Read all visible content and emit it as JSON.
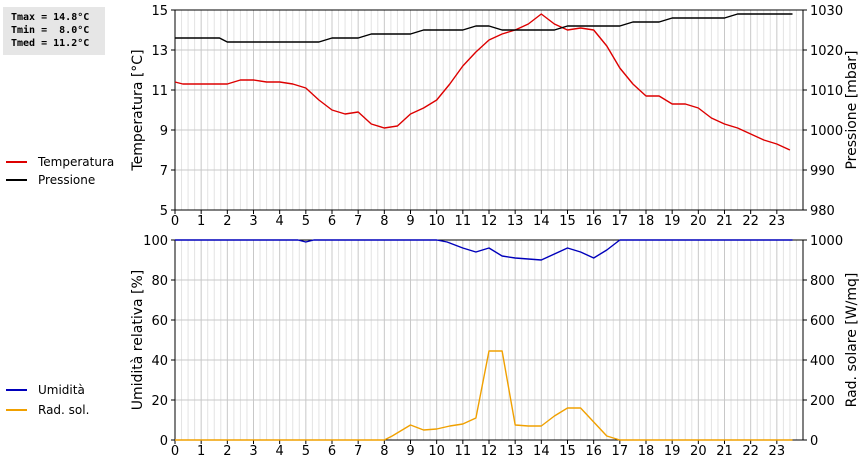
{
  "stats": {
    "tmax": "Tmax = 14.8°C",
    "tmin": "Tmin =  8.0°C",
    "tmed": "Tmed = 11.2°C"
  },
  "chart_data": [
    {
      "type": "line",
      "x_ticks": [
        "0",
        "1",
        "2",
        "3",
        "4",
        "5",
        "6",
        "7",
        "8",
        "9",
        "10",
        "11",
        "12",
        "13",
        "14",
        "15",
        "16",
        "17",
        "18",
        "19",
        "20",
        "21",
        "22",
        "23"
      ],
      "xlim": [
        0,
        24
      ],
      "ylabel_left": "Temperatura [°C]",
      "ylim_left": [
        5,
        15
      ],
      "yticks_left": [
        5,
        7,
        9,
        11,
        13,
        15
      ],
      "ylabel_right": "Pressione [mbar]",
      "ylim_right": [
        980,
        1030
      ],
      "yticks_right": [
        980,
        990,
        1000,
        1010,
        1020,
        1030
      ],
      "grid": true,
      "legend_position": "left",
      "series": [
        {
          "name": "Temperatura",
          "axis": "left",
          "color": "#dd0000",
          "x": [
            0,
            0.3,
            0.8,
            1.5,
            2,
            2.5,
            3,
            3.5,
            4,
            4.5,
            5,
            5.5,
            6,
            6.5,
            7,
            7.5,
            8,
            8.5,
            9,
            9.5,
            10,
            10.5,
            11,
            11.5,
            12,
            12.5,
            13,
            13.5,
            14,
            14.5,
            15,
            15.5,
            16,
            16.5,
            17,
            17.5,
            18,
            18.5,
            19,
            19.5,
            20,
            20.5,
            21,
            21.5,
            22,
            22.5,
            23,
            23.5
          ],
          "y": [
            11.4,
            11.3,
            11.3,
            11.3,
            11.3,
            11.5,
            11.5,
            11.4,
            11.4,
            11.3,
            11.1,
            10.5,
            10.0,
            9.8,
            9.9,
            9.3,
            9.1,
            9.2,
            9.8,
            10.1,
            10.5,
            11.3,
            12.2,
            12.9,
            13.5,
            13.8,
            14.0,
            14.3,
            14.8,
            14.3,
            14.0,
            14.1,
            14.0,
            13.2,
            12.1,
            11.3,
            10.7,
            10.7,
            10.3,
            10.3,
            10.1,
            9.6,
            9.3,
            9.1,
            8.8,
            8.5,
            8.3,
            8.0
          ]
        },
        {
          "name": "Pressione",
          "axis": "right",
          "color": "#000000",
          "x": [
            0,
            1,
            1.7,
            2,
            3,
            4,
            5,
            5.5,
            6,
            7,
            7.5,
            8,
            9,
            9.5,
            10,
            11,
            11.5,
            12,
            12.5,
            13,
            14,
            14.5,
            15,
            16,
            17,
            17.5,
            18,
            18.5,
            19,
            20,
            21,
            21.5,
            22,
            23,
            23.6
          ],
          "y": [
            1023,
            1023,
            1023,
            1022,
            1022,
            1022,
            1022,
            1022,
            1023,
            1023,
            1024,
            1024,
            1024,
            1025,
            1025,
            1025,
            1026,
            1026,
            1025,
            1025,
            1025,
            1025,
            1026,
            1026,
            1026,
            1027,
            1027,
            1027,
            1028,
            1028,
            1028,
            1029,
            1029,
            1029,
            1029
          ]
        }
      ]
    },
    {
      "type": "line",
      "x_ticks": [
        "0",
        "1",
        "2",
        "3",
        "4",
        "5",
        "6",
        "7",
        "8",
        "9",
        "10",
        "11",
        "12",
        "13",
        "14",
        "15",
        "16",
        "17",
        "18",
        "19",
        "20",
        "21",
        "22",
        "23"
      ],
      "xlim": [
        0,
        24
      ],
      "ylabel_left": "Umidità relativa [%]",
      "ylim_left": [
        0,
        100
      ],
      "yticks_left": [
        0,
        20,
        40,
        60,
        80,
        100
      ],
      "ylabel_right": "Rad. solare [W/mq]",
      "ylim_right": [
        0,
        1000
      ],
      "yticks_right": [
        0,
        200,
        400,
        600,
        800,
        1000
      ],
      "grid": true,
      "legend_position": "left",
      "series": [
        {
          "name": "Umidità",
          "axis": "left",
          "color": "#0000bb",
          "x": [
            0,
            4.7,
            5,
            5.3,
            10,
            10.4,
            11,
            11.5,
            12,
            12.5,
            13,
            14,
            15,
            15.5,
            16,
            16.5,
            17,
            23.6
          ],
          "y": [
            100,
            100,
            99,
            100,
            100,
            99,
            96,
            94,
            96,
            92,
            91,
            90,
            96,
            94,
            91,
            95,
            100,
            100
          ]
        },
        {
          "name": "Rad. sol.",
          "axis": "right",
          "color": "#f0a000",
          "x": [
            0,
            8,
            8.3,
            9,
            9.5,
            10,
            10.5,
            11,
            11.5,
            12,
            12.5,
            13,
            13.5,
            14,
            14.5,
            15,
            15.5,
            16,
            16.5,
            17,
            23.6
          ],
          "y": [
            0,
            0,
            20,
            75,
            50,
            55,
            70,
            80,
            110,
            445,
            445,
            75,
            70,
            70,
            120,
            160,
            160,
            90,
            20,
            0,
            0
          ]
        }
      ]
    }
  ]
}
